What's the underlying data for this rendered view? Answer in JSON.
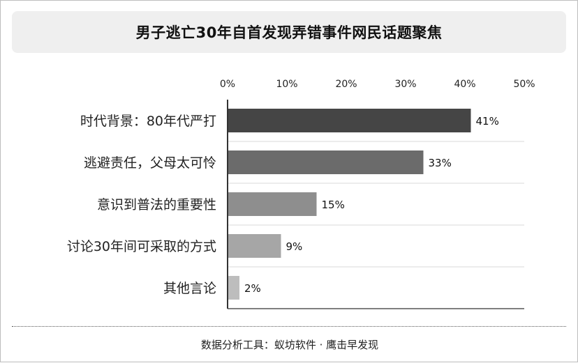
{
  "title": "男子逃亡30年自首发现弄错事件网民话题聚焦",
  "footer": "数据分析工具：蚁坊软件 · 鹰击早发现",
  "chart_data": {
    "type": "bar",
    "orientation": "horizontal",
    "categories": [
      "时代背景：80年代严打",
      "逃避责任，父母太可怜",
      "意识到普法的重要性",
      "讨论30年间可采取的方式",
      "其他言论"
    ],
    "values": [
      41,
      33,
      15,
      9,
      2
    ],
    "value_labels": [
      "41%",
      "33%",
      "15%",
      "9%",
      "2%"
    ],
    "bar_colors": [
      "#454545",
      "#6b6b6b",
      "#8e8e8e",
      "#a6a6a6",
      "#bdbdbd"
    ],
    "xlim": [
      0,
      50
    ],
    "x_ticks": [
      0,
      10,
      20,
      30,
      40,
      50
    ],
    "x_tick_labels": [
      "0%",
      "10%",
      "20%",
      "30%",
      "40%",
      "50%"
    ],
    "x_axis_position": "top",
    "grid": "horizontal-separators",
    "legend": "none"
  }
}
